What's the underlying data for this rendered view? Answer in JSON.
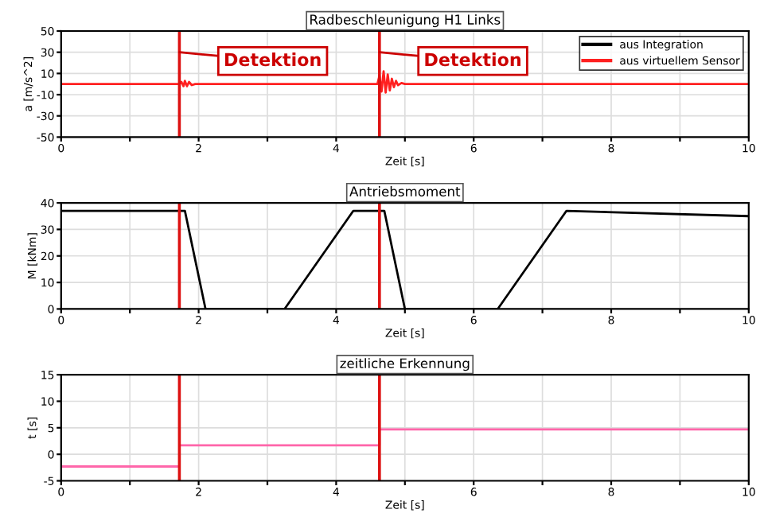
{
  "chart_data": [
    {
      "type": "line",
      "title": "Radbeschleunigung H1 Links",
      "xlabel": "Zeit [s]",
      "ylabel": "a [m/s^2]",
      "xlim": [
        0,
        10
      ],
      "ylim": [
        -50,
        50
      ],
      "xticks": [
        0,
        {
          "value": 1,
          "label": null
        },
        2,
        {
          "value": 3,
          "label": null
        },
        4,
        {
          "value": 5,
          "label": null
        },
        6,
        {
          "value": 7,
          "label": null
        },
        8,
        {
          "value": 9,
          "label": null
        },
        10
      ],
      "yticks": [
        -50,
        -30,
        -10,
        10,
        30,
        50
      ],
      "grid": true,
      "legend": "top right",
      "series": [
        {
          "name": "aus Integration",
          "color": "#000000"
        },
        {
          "name": "aus virtuellem Sensor",
          "color": "#ff2020",
          "x": [
            0,
            1.72,
            1.75,
            1.78,
            1.8,
            1.83,
            1.86,
            1.9,
            1.95,
            4.6,
            4.63,
            4.66,
            4.69,
            4.72,
            4.75,
            4.78,
            4.81,
            4.84,
            4.87,
            4.9,
            4.95,
            5.0,
            10
          ],
          "values": [
            0,
            0,
            2,
            -2,
            3,
            -2,
            2,
            -1,
            0,
            0,
            8,
            -7,
            12,
            -8,
            9,
            -6,
            5,
            -3,
            3,
            -1,
            1,
            0,
            0
          ]
        }
      ],
      "ref_lines": [
        {
          "axis": "x",
          "value": 1.72,
          "color": "#dd1111"
        },
        {
          "axis": "x",
          "value": 4.63,
          "color": "#dd1111"
        }
      ],
      "annotations": [
        {
          "text": "Detektion",
          "x": 1.72,
          "y": 30
        },
        {
          "text": "Detektion",
          "x": 4.63,
          "y": 30
        }
      ]
    },
    {
      "type": "line",
      "title": "Antriebsmoment",
      "xlabel": "Zeit [s]",
      "ylabel": "M [kNm]",
      "xlim": [
        0,
        10
      ],
      "ylim": [
        0,
        40
      ],
      "xticks": [
        0,
        {
          "value": 1,
          "label": null
        },
        2,
        {
          "value": 3,
          "label": null
        },
        4,
        {
          "value": 5,
          "label": null
        },
        6,
        {
          "value": 7,
          "label": null
        },
        8,
        {
          "value": 9,
          "label": null
        },
        10
      ],
      "yticks": [
        0,
        10,
        20,
        30,
        40
      ],
      "grid": true,
      "series": [
        {
          "color": "#000000",
          "x": [
            0,
            1.8,
            2.1,
            3.25,
            4.25,
            4.7,
            5.0,
            6.35,
            7.35,
            10
          ],
          "values": [
            37,
            37,
            0,
            0,
            37,
            37,
            0,
            0,
            37,
            35
          ]
        }
      ],
      "ref_lines": [
        {
          "axis": "x",
          "value": 1.72,
          "color": "#dd1111"
        },
        {
          "axis": "x",
          "value": 4.63,
          "color": "#dd1111"
        }
      ]
    },
    {
      "type": "step",
      "title": "zeitliche Erkennung",
      "xlabel": "Zeit [s]",
      "ylabel": "t [s]",
      "xlim": [
        0,
        10
      ],
      "ylim": [
        -5,
        15
      ],
      "xticks": [
        0,
        {
          "value": 1,
          "label": null
        },
        2,
        {
          "value": 3,
          "label": null
        },
        4,
        {
          "value": 5,
          "label": null
        },
        6,
        {
          "value": 7,
          "label": null
        },
        8,
        {
          "value": 9,
          "label": null
        },
        10
      ],
      "yticks": [
        -5,
        0,
        5,
        10,
        15
      ],
      "grid": true,
      "series": [
        {
          "color": "#ff66aa",
          "x": [
            0,
            1.72,
            4.63,
            10
          ],
          "values": [
            -2.3,
            1.7,
            4.7,
            4.7
          ]
        }
      ],
      "ref_lines": [
        {
          "axis": "x",
          "value": 1.72,
          "color": "#dd1111"
        },
        {
          "axis": "x",
          "value": 4.63,
          "color": "#dd1111"
        }
      ]
    }
  ]
}
